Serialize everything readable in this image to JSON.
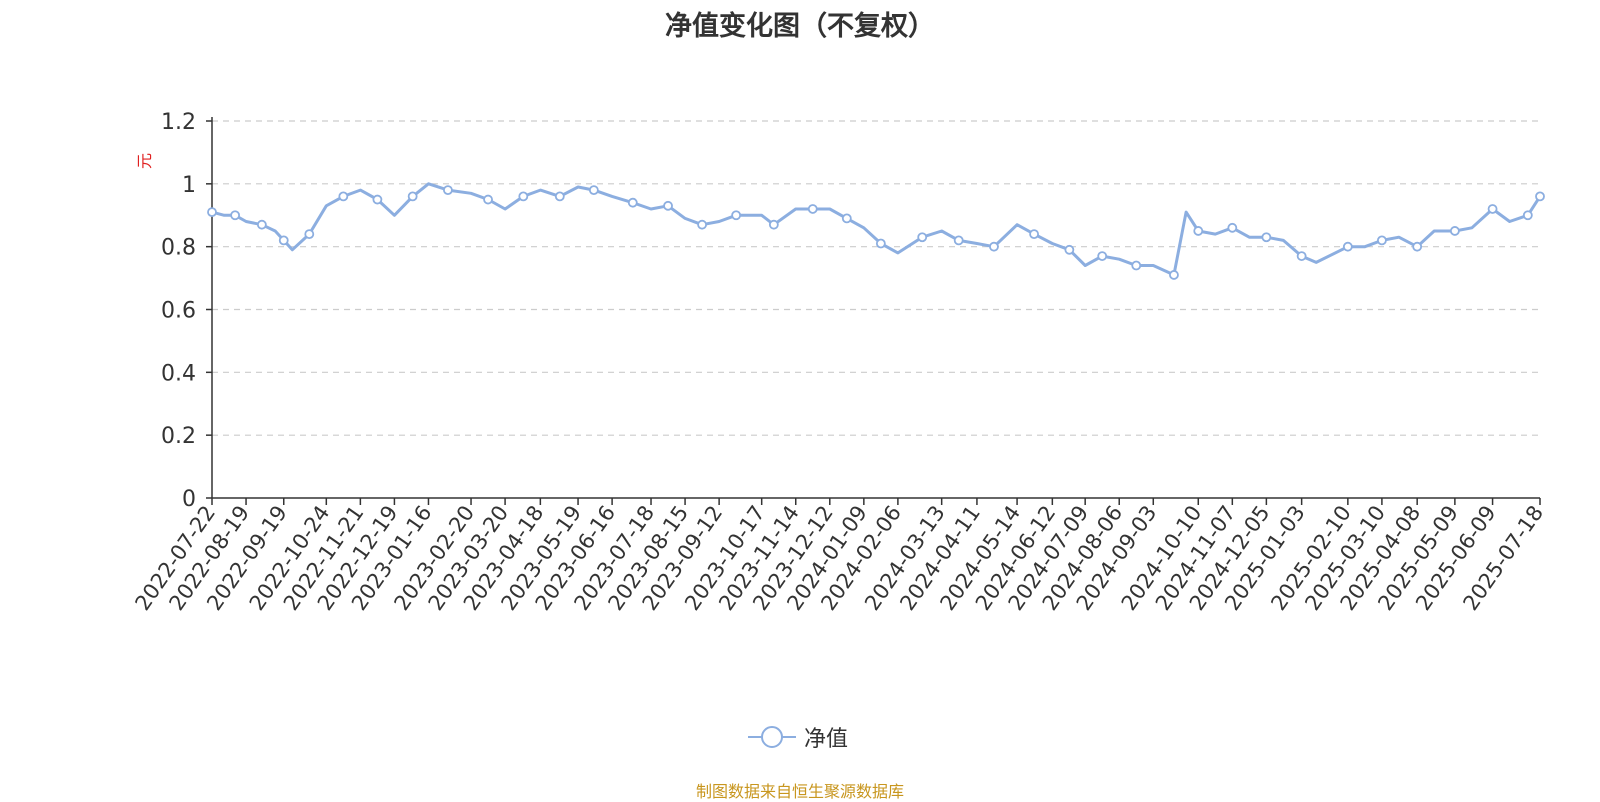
{
  "chart_data": {
    "type": "line",
    "title": "净值变化图（不复权）",
    "ylabel": "元",
    "ylim": [
      0,
      1.2
    ],
    "yticks": [
      "0",
      "0.2",
      "0.4",
      "0.6",
      "0.8",
      "1",
      "1.2"
    ],
    "x_tick_labels": [
      "2022-07-22",
      "2022-08-19",
      "2022-09-19",
      "2022-10-24",
      "2022-11-21",
      "2022-12-19",
      "2023-01-16",
      "2023-02-20",
      "2023-03-20",
      "2023-04-18",
      "2023-05-19",
      "2023-06-16",
      "2023-07-18",
      "2023-08-15",
      "2023-09-12",
      "2023-10-17",
      "2023-11-14",
      "2023-12-12",
      "2024-01-09",
      "2024-02-06",
      "2024-03-13",
      "2024-04-11",
      "2024-05-14",
      "2024-06-12",
      "2024-07-09",
      "2024-08-06",
      "2024-09-03",
      "2024-10-10",
      "2024-11-07",
      "2024-12-05",
      "2025-01-03",
      "2025-02-10",
      "2025-03-10",
      "2025-04-08",
      "2025-05-09",
      "2025-06-09",
      "2025-07-18"
    ],
    "grid": true,
    "legend_position": "bottom",
    "series": [
      {
        "name": "净值",
        "color": "#8caee0",
        "x": [
          "2022-07-22",
          "2022-08-01",
          "2022-08-10",
          "2022-08-19",
          "2022-09-01",
          "2022-09-12",
          "2022-09-19",
          "2022-09-26",
          "2022-10-10",
          "2022-10-24",
          "2022-11-07",
          "2022-11-21",
          "2022-12-05",
          "2022-12-19",
          "2023-01-03",
          "2023-01-16",
          "2023-02-01",
          "2023-02-20",
          "2023-03-06",
          "2023-03-20",
          "2023-04-04",
          "2023-04-18",
          "2023-05-04",
          "2023-05-19",
          "2023-06-01",
          "2023-06-16",
          "2023-07-03",
          "2023-07-18",
          "2023-08-01",
          "2023-08-15",
          "2023-08-29",
          "2023-09-12",
          "2023-09-26",
          "2023-10-17",
          "2023-10-27",
          "2023-11-14",
          "2023-11-28",
          "2023-12-12",
          "2023-12-26",
          "2024-01-09",
          "2024-01-23",
          "2024-02-06",
          "2024-02-26",
          "2024-03-13",
          "2024-03-27",
          "2024-04-11",
          "2024-04-25",
          "2024-05-14",
          "2024-05-28",
          "2024-06-12",
          "2024-06-26",
          "2024-07-09",
          "2024-07-23",
          "2024-08-06",
          "2024-08-20",
          "2024-09-03",
          "2024-09-20",
          "2024-09-30",
          "2024-10-10",
          "2024-10-24",
          "2024-11-07",
          "2024-11-21",
          "2024-12-05",
          "2024-12-19",
          "2025-01-03",
          "2025-01-15",
          "2025-02-10",
          "2025-02-24",
          "2025-03-10",
          "2025-03-24",
          "2025-04-08",
          "2025-04-22",
          "2025-05-09",
          "2025-05-23",
          "2025-06-09",
          "2025-06-23",
          "2025-07-08",
          "2025-07-18"
        ],
        "values": [
          0.91,
          0.9,
          0.9,
          0.88,
          0.87,
          0.85,
          0.82,
          0.79,
          0.84,
          0.93,
          0.96,
          0.98,
          0.95,
          0.9,
          0.96,
          1.0,
          0.98,
          0.97,
          0.95,
          0.92,
          0.96,
          0.98,
          0.96,
          0.99,
          0.98,
          0.96,
          0.94,
          0.92,
          0.93,
          0.89,
          0.87,
          0.88,
          0.9,
          0.9,
          0.87,
          0.92,
          0.92,
          0.92,
          0.89,
          0.86,
          0.81,
          0.78,
          0.83,
          0.85,
          0.82,
          0.81,
          0.8,
          0.87,
          0.84,
          0.81,
          0.79,
          0.74,
          0.77,
          0.76,
          0.74,
          0.74,
          0.71,
          0.91,
          0.85,
          0.84,
          0.86,
          0.83,
          0.83,
          0.82,
          0.77,
          0.75,
          0.8,
          0.8,
          0.82,
          0.83,
          0.8,
          0.85,
          0.85,
          0.86,
          0.92,
          0.88,
          0.9,
          0.96
        ]
      }
    ]
  },
  "legend_label": "净值",
  "source_note": "制图数据来自恒生聚源数据库"
}
